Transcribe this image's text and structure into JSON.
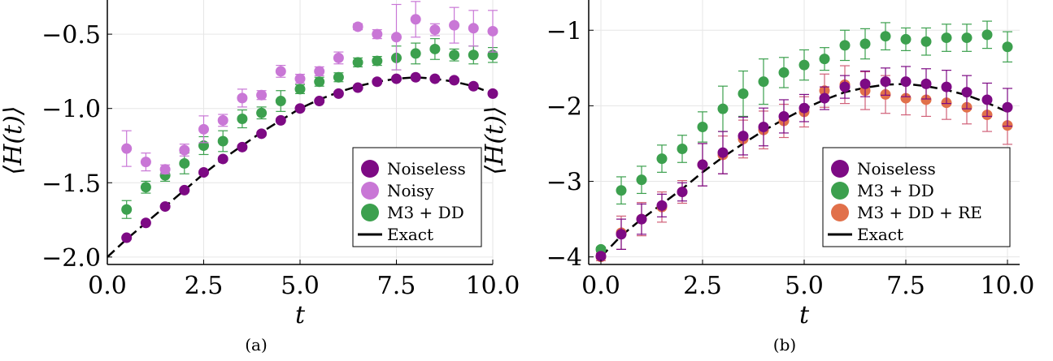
{
  "colors": {
    "noiseless": "#7d0a84",
    "noisy": "#c977d6",
    "m3dd": "#3ca04e",
    "m3ddre": "#e1704a",
    "m3ddre_err": "#d06078",
    "exact": "#000000"
  },
  "chart_data": [
    {
      "type": "scatter",
      "caption": "(a)",
      "xlabel": "t",
      "ylabel": "⟨H(t)⟩",
      "xlim": [
        0,
        10
      ],
      "ylim": [
        -2.05,
        -0.27
      ],
      "xticks": [
        "0.0",
        "2.5",
        "5.0",
        "7.5",
        "10.0"
      ],
      "xtick_values": [
        0,
        2.5,
        5,
        7.5,
        10
      ],
      "yticks": [
        "−2.0",
        "−1.5",
        "−1.0",
        "−0.5"
      ],
      "ytick_values": [
        -2.0,
        -1.5,
        -1.0,
        -0.5
      ],
      "grid": true,
      "legend_position": "bottom-right",
      "series": [
        {
          "name": "Noiseless",
          "color_key": "noiseless",
          "x": [
            0.5,
            1,
            1.5,
            2,
            2.5,
            3,
            3.5,
            4,
            4.5,
            5,
            5.5,
            6,
            6.5,
            7,
            7.5,
            8,
            8.5,
            9,
            9.5,
            10
          ],
          "y": [
            -1.87,
            -1.77,
            -1.66,
            -1.55,
            -1.43,
            -1.34,
            -1.26,
            -1.17,
            -1.08,
            -1.0,
            -0.95,
            -0.9,
            -0.86,
            -0.82,
            -0.8,
            -0.79,
            -0.8,
            -0.81,
            -0.85,
            -0.9
          ],
          "err": [
            0.01,
            0.01,
            0.01,
            0.01,
            0.01,
            0.01,
            0.01,
            0.01,
            0.01,
            0.01,
            0.01,
            0.01,
            0.01,
            0.01,
            0.01,
            0.01,
            0.01,
            0.01,
            0.01,
            0.01
          ]
        },
        {
          "name": "Noisy",
          "color_key": "noisy",
          "x": [
            0.5,
            1,
            1.5,
            2,
            2.5,
            3,
            3.5,
            4,
            4.5,
            5,
            5.5,
            6,
            6.5,
            7,
            7.5,
            8,
            8.5,
            9,
            9.5,
            10
          ],
          "y": [
            -1.27,
            -1.36,
            -1.41,
            -1.28,
            -1.14,
            -1.08,
            -0.93,
            -0.91,
            -0.75,
            -0.8,
            -0.75,
            -0.66,
            -0.45,
            -0.5,
            -0.52,
            -0.4,
            -0.47,
            -0.44,
            -0.46,
            -0.48
          ],
          "err": [
            0.12,
            0.06,
            0.03,
            0.04,
            0.09,
            0.04,
            0.06,
            0.03,
            0.04,
            0.03,
            0.03,
            0.04,
            0.02,
            0.03,
            0.22,
            0.12,
            0.04,
            0.12,
            0.12,
            0.14
          ]
        },
        {
          "name": "M3 + DD",
          "color_key": "m3dd",
          "x": [
            0.5,
            1,
            1.5,
            2,
            2.5,
            3,
            3.5,
            4,
            4.5,
            5,
            5.5,
            6,
            6.5,
            7,
            7.5,
            8,
            8.5,
            9,
            9.5,
            10
          ],
          "y": [
            -1.68,
            -1.53,
            -1.45,
            -1.37,
            -1.25,
            -1.22,
            -1.07,
            -1.03,
            -0.95,
            -0.87,
            -0.82,
            -0.79,
            -0.69,
            -0.68,
            -0.66,
            -0.63,
            -0.6,
            -0.64,
            -0.64,
            -0.64
          ],
          "err": [
            0.06,
            0.04,
            0.04,
            0.07,
            0.06,
            0.07,
            0.06,
            0.04,
            0.07,
            0.03,
            0.03,
            0.03,
            0.03,
            0.03,
            0.08,
            0.07,
            0.07,
            0.04,
            0.06,
            0.05
          ]
        }
      ],
      "exact_curve": {
        "name": "Exact",
        "color_key": "exact",
        "x": [
          0,
          0.5,
          1,
          1.5,
          2,
          2.5,
          3,
          3.5,
          4,
          4.5,
          5,
          5.5,
          6,
          6.5,
          7,
          7.5,
          8,
          8.5,
          9,
          9.5,
          10
        ],
        "y": [
          -2.0,
          -1.88,
          -1.77,
          -1.66,
          -1.55,
          -1.44,
          -1.34,
          -1.25,
          -1.16,
          -1.08,
          -1.0,
          -0.94,
          -0.89,
          -0.85,
          -0.82,
          -0.8,
          -0.79,
          -0.8,
          -0.82,
          -0.85,
          -0.9
        ]
      }
    },
    {
      "type": "scatter",
      "caption": "(b)",
      "xlabel": "t",
      "ylabel": "⟨H(t)⟩",
      "xlim": [
        -0.3,
        10.3
      ],
      "ylim": [
        -4.1,
        -0.6
      ],
      "xticks": [
        "0.0",
        "2.5",
        "5.0",
        "7.5",
        "10.0"
      ],
      "xtick_values": [
        0,
        2.5,
        5,
        7.5,
        10
      ],
      "yticks": [
        "−4",
        "−3",
        "−2",
        "−1"
      ],
      "ytick_values": [
        -4,
        -3,
        -2,
        -1
      ],
      "grid": true,
      "legend_position": "bottom-right",
      "series": [
        {
          "name": "Noiseless",
          "color_key": "noiseless",
          "x": [
            0,
            0.5,
            1,
            1.5,
            2,
            2.5,
            3,
            3.5,
            4,
            4.5,
            5,
            5.5,
            6,
            6.5,
            7,
            7.5,
            8,
            8.5,
            9,
            9.5,
            10
          ],
          "y": [
            -3.99,
            -3.7,
            -3.5,
            -3.32,
            -3.14,
            -2.78,
            -2.62,
            -2.4,
            -2.28,
            -2.14,
            -2.03,
            -1.9,
            -1.75,
            -1.71,
            -1.68,
            -1.68,
            -1.71,
            -1.75,
            -1.82,
            -1.92,
            -2.02
          ],
          "err": [
            0.03,
            0.2,
            0.2,
            0.15,
            0.12,
            0.28,
            0.28,
            0.25,
            0.25,
            0.22,
            0.18,
            0.15,
            0.15,
            0.17,
            0.18,
            0.2,
            0.2,
            0.22,
            0.22,
            0.22,
            0.25
          ]
        },
        {
          "name": "M3 + DD",
          "color_key": "m3dd",
          "x": [
            0,
            0.5,
            1,
            1.5,
            2,
            2.5,
            3,
            3.5,
            4,
            4.5,
            5,
            5.5,
            6,
            6.5,
            7,
            7.5,
            8,
            8.5,
            9,
            9.5,
            10
          ],
          "y": [
            -3.9,
            -3.12,
            -2.98,
            -2.7,
            -2.57,
            -2.28,
            -2.04,
            -1.84,
            -1.68,
            -1.56,
            -1.46,
            -1.38,
            -1.2,
            -1.18,
            -1.08,
            -1.12,
            -1.15,
            -1.1,
            -1.1,
            -1.06,
            -1.22
          ],
          "err": [
            0.03,
            0.18,
            0.18,
            0.18,
            0.18,
            0.2,
            0.3,
            0.3,
            0.3,
            0.2,
            0.2,
            0.15,
            0.2,
            0.2,
            0.18,
            0.15,
            0.18,
            0.18,
            0.18,
            0.18,
            0.2
          ]
        },
        {
          "name": "M3 + DD + RE",
          "color_key": "m3ddre",
          "err_color_key": "m3ddre_err",
          "x": [
            0,
            0.5,
            1,
            1.5,
            2,
            2.5,
            3,
            3.5,
            4,
            4.5,
            5,
            5.5,
            6,
            6.5,
            7,
            7.5,
            8,
            8.5,
            9,
            9.5,
            10
          ],
          "y": [
            -4.0,
            -3.68,
            -3.5,
            -3.34,
            -3.14,
            -2.78,
            -2.65,
            -2.44,
            -2.32,
            -2.2,
            -2.08,
            -1.8,
            -1.72,
            -1.8,
            -1.85,
            -1.9,
            -1.92,
            -1.96,
            -2.02,
            -2.12,
            -2.26
          ],
          "err": [
            0.05,
            0.22,
            0.22,
            0.2,
            0.15,
            0.28,
            0.25,
            0.25,
            0.25,
            0.22,
            0.2,
            0.22,
            0.25,
            0.25,
            0.25,
            0.22,
            0.22,
            0.22,
            0.22,
            0.22,
            0.25
          ]
        }
      ],
      "exact_curve": {
        "name": "Exact",
        "color_key": "exact",
        "x": [
          0,
          0.5,
          1,
          1.5,
          2,
          2.5,
          3,
          3.5,
          4,
          4.5,
          5,
          5.5,
          6,
          6.5,
          7,
          7.5,
          8,
          8.5,
          9,
          9.5,
          10
        ],
        "y": [
          -4.0,
          -3.72,
          -3.5,
          -3.3,
          -3.1,
          -2.88,
          -2.68,
          -2.5,
          -2.33,
          -2.18,
          -2.04,
          -1.92,
          -1.82,
          -1.76,
          -1.72,
          -1.71,
          -1.74,
          -1.79,
          -1.86,
          -1.96,
          -2.08
        ]
      }
    }
  ]
}
